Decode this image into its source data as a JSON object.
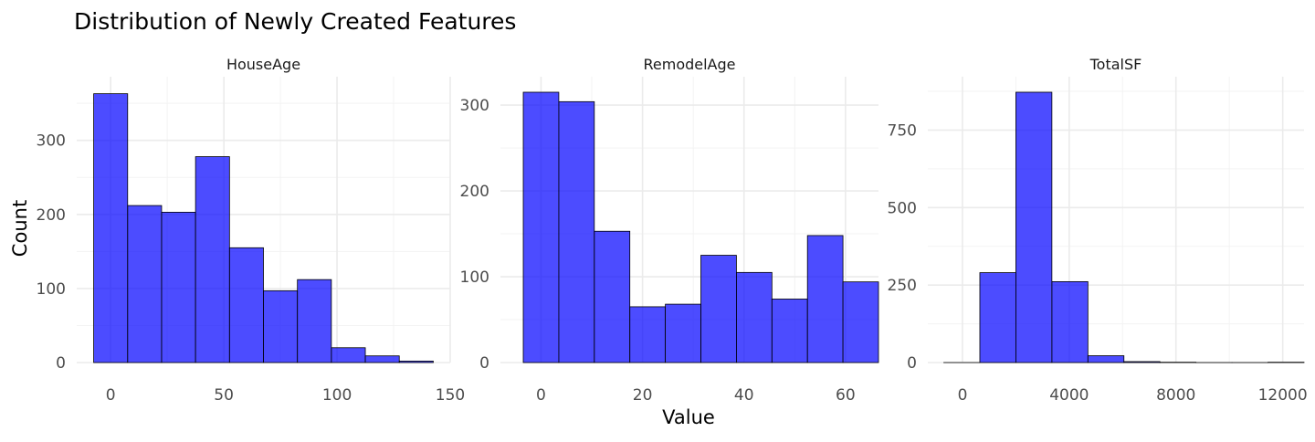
{
  "chart_data": {
    "type": "bar",
    "title": "Distribution of Newly Created Features",
    "xlabel": "Value",
    "ylabel": "Count",
    "bar_color": "#0000FF",
    "bar_opacity": 0.7,
    "edge_color": "#000000",
    "grid": true,
    "facets": [
      {
        "name": "HouseAge",
        "bin_edges": [
          -7.5,
          7.5,
          22.5,
          37.5,
          52.5,
          67.5,
          82.5,
          97.5,
          112.5,
          127.5,
          142.5
        ],
        "values": [
          363,
          212,
          203,
          278,
          155,
          97,
          112,
          20,
          9,
          2
        ],
        "xlim": [
          -15,
          150
        ],
        "ylim": [
          0,
          365
        ],
        "x_ticks": [
          0,
          50,
          100,
          150
        ],
        "y_ticks": [
          0,
          100,
          200,
          300
        ]
      },
      {
        "name": "RemodelAge",
        "bin_edges": [
          -3.5,
          3.5,
          10.5,
          17.5,
          24.5,
          31.5,
          38.5,
          45.5,
          52.5,
          59.5,
          66.5
        ],
        "values": [
          315,
          304,
          153,
          65,
          68,
          125,
          105,
          74,
          148,
          94
        ],
        "xlim": [
          -8,
          66.5
        ],
        "ylim": [
          0,
          315
        ],
        "x_ticks": [
          0,
          20,
          40,
          60
        ],
        "y_ticks": [
          0,
          100,
          200,
          300
        ]
      },
      {
        "name": "TotalSF",
        "bin_edges": [
          -700,
          650,
          2000,
          3350,
          4700,
          6050,
          7400,
          8750,
          10100,
          11450,
          12800
        ],
        "values": [
          0,
          290,
          872,
          261,
          22,
          3,
          1,
          0,
          0,
          1
        ],
        "xlim": [
          -1300,
          12800
        ],
        "ylim": [
          0,
          872
        ],
        "x_ticks": [
          0,
          4000,
          8000,
          12000
        ],
        "y_ticks": [
          0,
          250,
          500,
          750
        ]
      }
    ]
  }
}
